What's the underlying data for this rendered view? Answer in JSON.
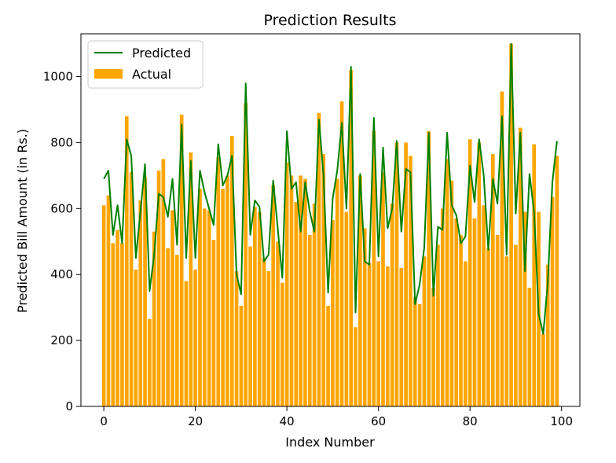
{
  "chart_data": {
    "type": "bar",
    "title": "Prediction Results",
    "xlabel": "Index Number",
    "ylabel": "Predicted Bill Amount (in Rs.)",
    "xlim": [
      -5,
      104
    ],
    "ylim": [
      0,
      1130
    ],
    "x_ticks": [
      0,
      20,
      40,
      60,
      80,
      100
    ],
    "y_ticks": [
      0,
      200,
      400,
      600,
      800,
      1000
    ],
    "legend": {
      "position": "top-left",
      "entries": [
        "Predicted",
        "Actual"
      ]
    },
    "grid": false,
    "series": [
      {
        "name": "Actual",
        "type": "bar",
        "color": "#FFA500",
        "values": [
          610,
          640,
          495,
          535,
          495,
          880,
          710,
          415,
          625,
          695,
          265,
          530,
          715,
          750,
          480,
          595,
          460,
          885,
          380,
          770,
          415,
          660,
          600,
          595,
          505,
          755,
          660,
          700,
          820,
          410,
          305,
          920,
          485,
          605,
          590,
          450,
          410,
          670,
          500,
          375,
          740,
          700,
          620,
          700,
          690,
          520,
          615,
          890,
          765,
          305,
          565,
          690,
          925,
          590,
          1020,
          240,
          700,
          540,
          435,
          835,
          440,
          710,
          425,
          615,
          800,
          420,
          800,
          760,
          330,
          310,
          455,
          835,
          360,
          490,
          600,
          750,
          685,
          570,
          520,
          440,
          810,
          570,
          800,
          610,
          480,
          765,
          520,
          955,
          455,
          1100,
          490,
          845,
          590,
          360,
          795,
          590,
          220,
          430,
          635,
          760
        ]
      },
      {
        "name": "Predicted",
        "type": "line",
        "color": "#008000",
        "values": [
          690,
          715,
          520,
          610,
          495,
          810,
          760,
          450,
          590,
          735,
          350,
          460,
          645,
          635,
          575,
          690,
          490,
          855,
          450,
          745,
          450,
          715,
          650,
          600,
          550,
          795,
          670,
          700,
          760,
          400,
          340,
          980,
          520,
          625,
          605,
          440,
          460,
          685,
          540,
          390,
          835,
          660,
          680,
          530,
          680,
          590,
          530,
          870,
          700,
          345,
          630,
          715,
          860,
          600,
          1030,
          285,
          705,
          440,
          430,
          875,
          455,
          785,
          540,
          600,
          805,
          530,
          720,
          710,
          310,
          370,
          480,
          830,
          335,
          545,
          535,
          830,
          610,
          580,
          495,
          515,
          730,
          620,
          810,
          700,
          475,
          690,
          615,
          880,
          460,
          1100,
          585,
          830,
          410,
          705,
          590,
          280,
          220,
          375,
          680,
          805
        ]
      }
    ]
  }
}
